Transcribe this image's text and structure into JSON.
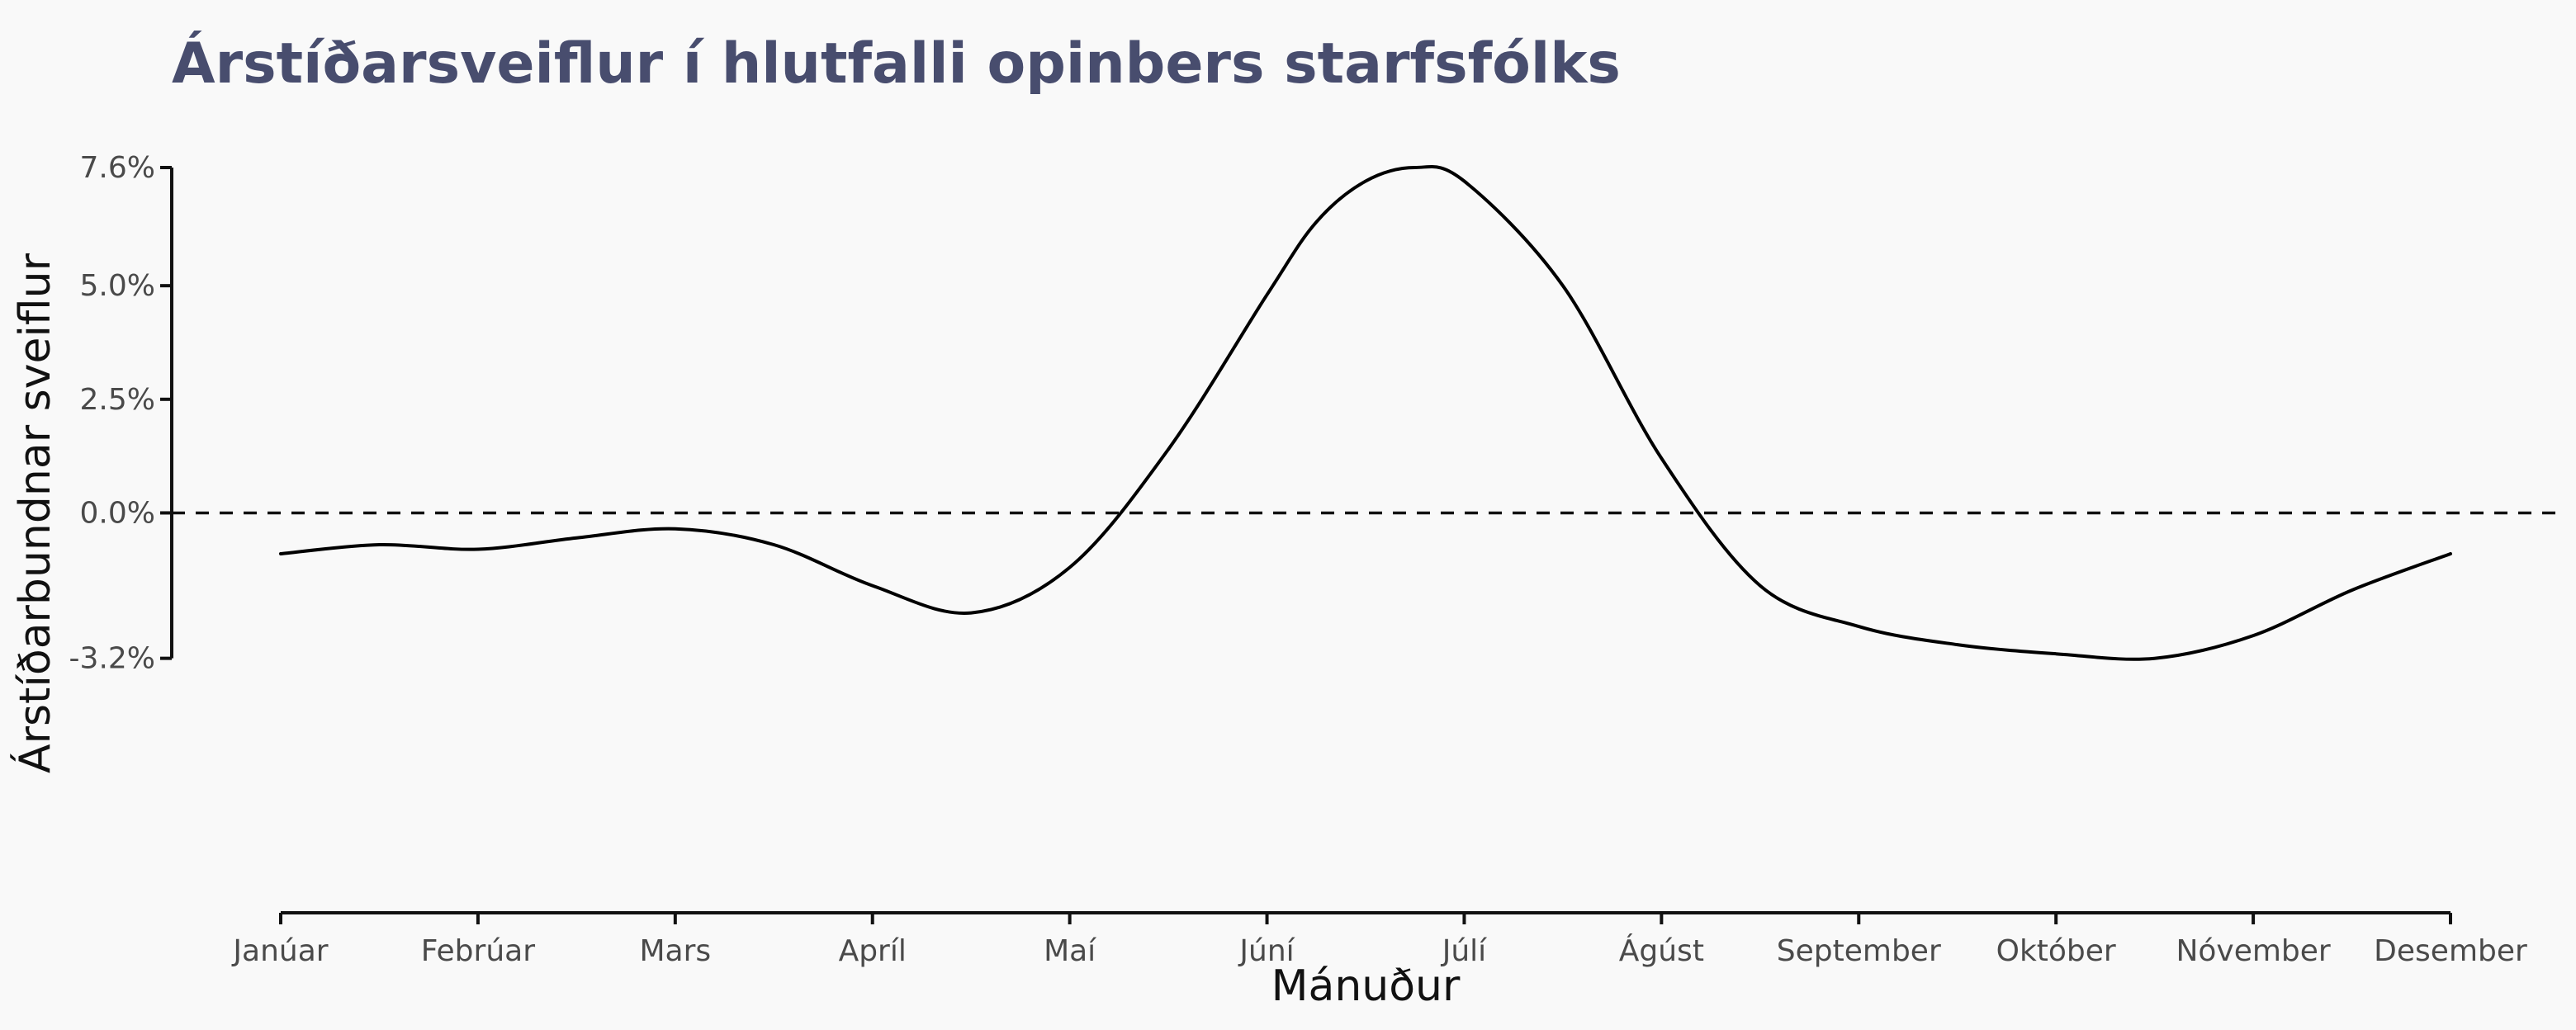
{
  "chart_data": {
    "type": "line",
    "title": "Árstíðarsveiflur í hlutfalli opinbers starfsfólks",
    "xlabel": "Mánuður",
    "ylabel": "Árstíðarbundnar sveiflur",
    "categories": [
      "Janúar",
      "Febrúar",
      "Mars",
      "Apríl",
      "Maí",
      "Júní",
      "Júlí",
      "Ágúst",
      "September",
      "Október",
      "Nóvember",
      "Desember"
    ],
    "y_ticks": [
      7.6,
      5.0,
      2.5,
      0.0,
      -3.2
    ],
    "y_tick_labels": [
      "7.6%",
      "5.0%",
      "2.5%",
      "0.0%",
      "-3.2%"
    ],
    "ylim": [
      -8.8,
      7.6
    ],
    "reference_line": {
      "y": 0,
      "style": "dashed"
    },
    "series": [
      {
        "x": [
          1,
          1.5,
          2,
          2.5,
          3,
          3.5,
          4,
          4.5,
          5,
          5.5,
          6,
          6.25,
          6.5,
          6.75,
          7,
          7.5,
          8,
          8.5,
          9,
          9.5,
          10,
          10.5,
          11,
          11.5,
          12
        ],
        "values": [
          -0.9,
          -0.7,
          -0.8,
          -0.55,
          -0.35,
          -0.7,
          -1.6,
          -2.2,
          -1.2,
          1.4,
          4.8,
          6.4,
          7.3,
          7.6,
          7.3,
          5.0,
          1.2,
          -1.6,
          -2.5,
          -2.9,
          -3.1,
          -3.2,
          -2.7,
          -1.7,
          -0.9
        ]
      }
    ],
    "legend": "none",
    "grid": false,
    "line_color": "#000000",
    "title_color": "#484d6e"
  }
}
